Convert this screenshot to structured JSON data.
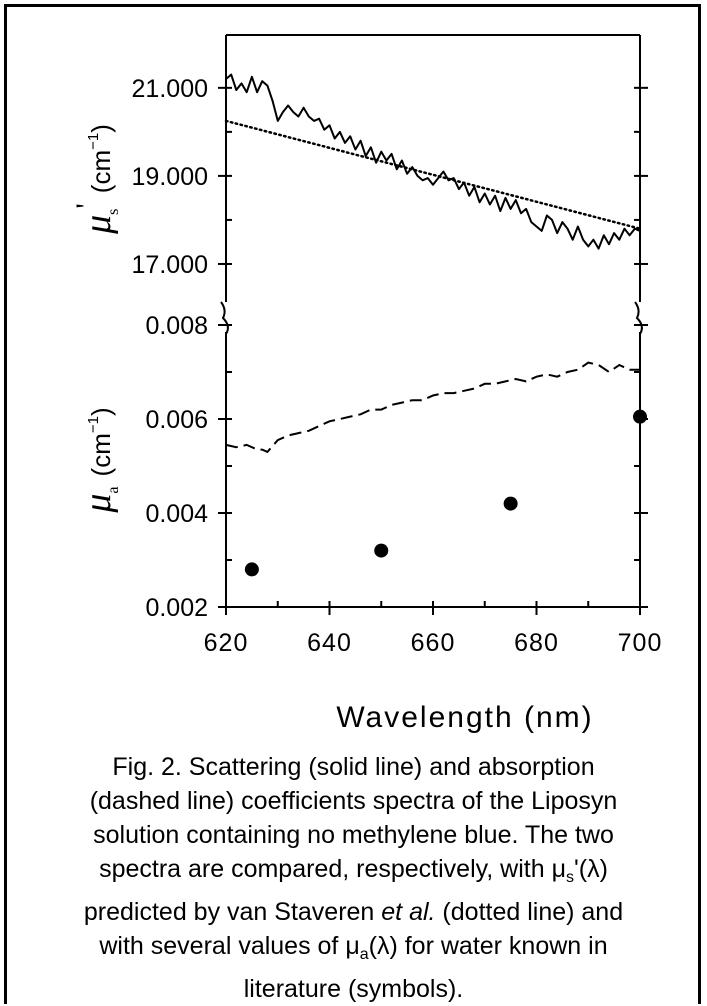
{
  "chart_data": [
    {
      "panel": "top",
      "type": "line",
      "ylabel": {
        "symbol": "μ",
        "subscript": "s",
        "prime": "'",
        "unit": "(cm",
        "exp": "−1",
        "close": ")"
      },
      "ylim": [
        16.0,
        22.2
      ],
      "y_ticks": [
        17.0,
        19.0,
        21.0
      ],
      "y_tick_labels": [
        "17.000",
        "19.000",
        "21.000"
      ],
      "x_range": [
        620,
        700
      ],
      "series": [
        {
          "style": "solid",
          "x": [
            620,
            621,
            622,
            623,
            624,
            625,
            626,
            627,
            628,
            629,
            630,
            631,
            632,
            633,
            634,
            635,
            636,
            637,
            638,
            639,
            640,
            641,
            642,
            643,
            644,
            645,
            646,
            647,
            648,
            649,
            650,
            651,
            652,
            653,
            654,
            655,
            656,
            657,
            658,
            659,
            660,
            661,
            662,
            663,
            664,
            665,
            666,
            667,
            668,
            669,
            670,
            671,
            672,
            673,
            674,
            675,
            676,
            677,
            678,
            679,
            680,
            681,
            682,
            683,
            684,
            685,
            686,
            687,
            688,
            689,
            690,
            691,
            692,
            693,
            694,
            695,
            696,
            697,
            698,
            699,
            700
          ],
          "values": [
            21.2,
            21.3,
            20.95,
            21.1,
            20.9,
            21.25,
            20.9,
            21.15,
            21.05,
            20.7,
            20.25,
            20.45,
            20.6,
            20.45,
            20.35,
            20.55,
            20.35,
            20.25,
            20.3,
            20.05,
            20.15,
            19.85,
            20.0,
            19.75,
            19.9,
            19.6,
            19.8,
            19.45,
            19.65,
            19.3,
            19.55,
            19.35,
            19.5,
            19.15,
            19.35,
            19.05,
            19.2,
            19.0,
            18.9,
            18.95,
            18.8,
            18.95,
            19.1,
            18.9,
            18.95,
            18.7,
            18.85,
            18.55,
            18.75,
            18.4,
            18.6,
            18.35,
            18.55,
            18.2,
            18.5,
            18.25,
            18.45,
            18.15,
            18.25,
            17.95,
            17.85,
            17.75,
            18.1,
            18.0,
            17.7,
            17.95,
            17.8,
            17.55,
            17.85,
            17.55,
            17.4,
            17.55,
            17.35,
            17.65,
            17.45,
            17.7,
            17.55,
            17.8,
            17.65,
            17.8,
            17.75
          ]
        },
        {
          "style": "dotted",
          "x": [
            620,
            700
          ],
          "values": [
            20.25,
            17.8
          ]
        }
      ]
    },
    {
      "panel": "bottom",
      "type": "line",
      "ylabel": {
        "symbol": "μ",
        "subscript": "a",
        "unit": "(cm",
        "exp": "−1",
        "close": ")"
      },
      "ylim": [
        0.002,
        0.008
      ],
      "y_ticks": [
        0.002,
        0.004,
        0.006,
        0.008
      ],
      "y_tick_labels": [
        "0.002",
        "0.004",
        "0.006",
        "0.008"
      ],
      "xlabel": "Wavelength (nm)",
      "x_ticks": [
        620,
        640,
        660,
        680,
        700
      ],
      "xlim": [
        620,
        700
      ],
      "series": [
        {
          "style": "dashed",
          "x": [
            620,
            622,
            624,
            626,
            627,
            628,
            630,
            632,
            634,
            636,
            638,
            640,
            642,
            644,
            646,
            648,
            650,
            652,
            654,
            656,
            658,
            660,
            662,
            664,
            666,
            668,
            670,
            672,
            674,
            676,
            678,
            680,
            682,
            684,
            686,
            688,
            690,
            692,
            694,
            696,
            698,
            700
          ],
          "values": [
            0.00545,
            0.0054,
            0.00545,
            0.00535,
            0.00535,
            0.0053,
            0.00555,
            0.00565,
            0.0057,
            0.00575,
            0.00585,
            0.00595,
            0.006,
            0.00605,
            0.0061,
            0.0062,
            0.0062,
            0.0063,
            0.00635,
            0.0064,
            0.0064,
            0.0065,
            0.00655,
            0.00655,
            0.0066,
            0.00665,
            0.00675,
            0.00675,
            0.0068,
            0.00685,
            0.0068,
            0.0069,
            0.00695,
            0.0069,
            0.007,
            0.00705,
            0.0072,
            0.00715,
            0.007,
            0.00715,
            0.00705,
            0.00705
          ]
        },
        {
          "style": "symbols",
          "x": [
            625,
            650,
            675,
            700
          ],
          "values": [
            0.0028,
            0.0032,
            0.0042,
            0.00605
          ]
        }
      ]
    }
  ],
  "caption": {
    "line1": "Fig. 2. Scattering (solid line) and absorption",
    "line2": "(dashed line) coefficients spectra of the Liposyn",
    "line3": "solution containing no methylene blue. The two",
    "line4a": "spectra are compared, respectively, with μ",
    "line4sub": "s",
    "line4b": "'(λ)",
    "line5a": "predicted by van Staveren ",
    "line5em": "et al.",
    "line5b": " (dotted line) and",
    "line6a": "with several values of μ",
    "line6sub": "a",
    "line6b": "(λ) for water known in",
    "line7": "literature (symbols)."
  },
  "colors": {
    "ink": "#000000",
    "background": "#ffffff"
  }
}
